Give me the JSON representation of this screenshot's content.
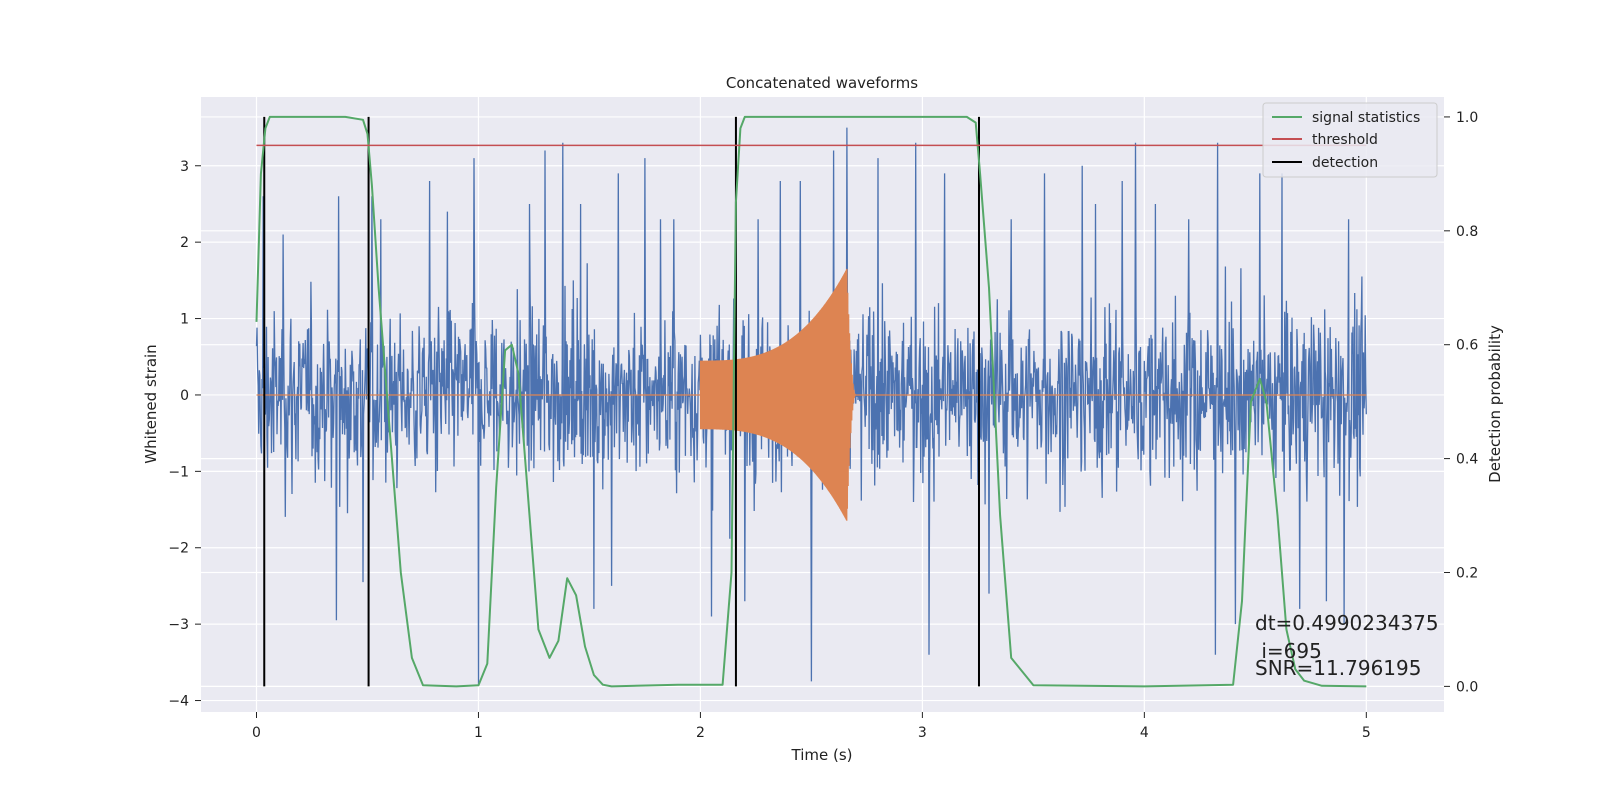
{
  "chart_data": {
    "type": "line",
    "title": "Concatenated waveforms",
    "xlabel": "Time (s)",
    "ylabel": "Whitened strain",
    "y2label": "Detection probability",
    "xlim": [
      -0.25,
      5.35
    ],
    "ylim": [
      -4.15,
      3.9
    ],
    "y2lim": [
      -0.045,
      1.035
    ],
    "x_ticks": [
      0,
      1,
      2,
      3,
      4,
      5
    ],
    "y_ticks": [
      -4,
      -3,
      -2,
      -1,
      0,
      1,
      2,
      3
    ],
    "y2_ticks": [
      0.0,
      0.2,
      0.4,
      0.6,
      0.8,
      1.0
    ],
    "grid": true,
    "legend_position": "top-right",
    "colors": {
      "strain": "#4c72b0",
      "injected_signal": "#dd8452",
      "signal_statistics": "#55a868",
      "threshold": "#c44e52",
      "detection": "#000000",
      "background": "#eaeaf2",
      "grid": "#ffffff"
    },
    "series": [
      {
        "name": "signal statistics",
        "axis": "right",
        "x": [
          0.0,
          0.02,
          0.04,
          0.06,
          0.1,
          0.2,
          0.4,
          0.48,
          0.5,
          0.52,
          0.55,
          0.6,
          0.65,
          0.7,
          0.75,
          0.9,
          1.0,
          1.04,
          1.08,
          1.12,
          1.15,
          1.18,
          1.22,
          1.27,
          1.32,
          1.36,
          1.4,
          1.44,
          1.48,
          1.52,
          1.56,
          1.6,
          1.9,
          2.0,
          2.1,
          2.14,
          2.16,
          2.18,
          2.2,
          2.25,
          3.2,
          3.24,
          3.26,
          3.3,
          3.35,
          3.4,
          3.5,
          4.0,
          4.4,
          4.44,
          4.48,
          4.52,
          4.55,
          4.6,
          4.64,
          4.68,
          4.72,
          4.8,
          5.0
        ],
        "values": [
          0.64,
          0.9,
          0.98,
          1.0,
          1.0,
          1.0,
          1.0,
          0.995,
          0.97,
          0.88,
          0.7,
          0.45,
          0.2,
          0.05,
          0.002,
          0.0,
          0.002,
          0.04,
          0.35,
          0.59,
          0.6,
          0.55,
          0.35,
          0.1,
          0.05,
          0.08,
          0.19,
          0.16,
          0.07,
          0.02,
          0.003,
          0.0,
          0.003,
          0.003,
          0.003,
          0.2,
          0.85,
          0.98,
          1.0,
          1.0,
          1.0,
          0.99,
          0.9,
          0.7,
          0.3,
          0.05,
          0.002,
          0.0,
          0.003,
          0.15,
          0.5,
          0.54,
          0.5,
          0.3,
          0.1,
          0.03,
          0.01,
          0.001,
          0.0
        ]
      },
      {
        "name": "threshold",
        "axis": "right",
        "x": [
          0.0,
          5.0
        ],
        "values": [
          0.95,
          0.95
        ]
      },
      {
        "name": "detection",
        "axis": "left",
        "x": [
          0.035,
          0.505,
          2.16,
          3.255
        ]
      }
    ],
    "legend": [
      "signal statistics",
      "threshold",
      "detection"
    ],
    "strain": {
      "x_start": 0.0,
      "x_end": 5.0,
      "amplitude_scale": 0.78,
      "spikes": [
        {
          "x": 0.03,
          "y": 2.6
        },
        {
          "x": 0.12,
          "y": 2.1
        },
        {
          "x": 0.37,
          "y": 2.6
        },
        {
          "x": 0.52,
          "y": 2.6
        },
        {
          "x": 0.36,
          "y": -2.95
        },
        {
          "x": 0.48,
          "y": -2.45
        },
        {
          "x": 0.78,
          "y": 2.8
        },
        {
          "x": 0.86,
          "y": 2.4
        },
        {
          "x": 0.98,
          "y": 3.1
        },
        {
          "x": 1.0,
          "y": -3.8
        },
        {
          "x": 1.23,
          "y": 2.5
        },
        {
          "x": 1.3,
          "y": 3.2
        },
        {
          "x": 1.38,
          "y": 3.3
        },
        {
          "x": 1.46,
          "y": 2.5
        },
        {
          "x": 1.52,
          "y": -2.8
        },
        {
          "x": 1.63,
          "y": 2.9
        },
        {
          "x": 1.75,
          "y": 3.1
        },
        {
          "x": 1.82,
          "y": 2.3
        },
        {
          "x": 1.88,
          "y": 2.3
        },
        {
          "x": 2.05,
          "y": -2.9
        },
        {
          "x": 2.26,
          "y": 2.3
        },
        {
          "x": 2.36,
          "y": 2.8
        },
        {
          "x": 2.45,
          "y": 2.8
        },
        {
          "x": 2.5,
          "y": -3.75
        },
        {
          "x": 2.6,
          "y": 3.2
        },
        {
          "x": 2.66,
          "y": 3.5
        },
        {
          "x": 2.8,
          "y": 3.1
        },
        {
          "x": 2.97,
          "y": 3.3
        },
        {
          "x": 3.03,
          "y": -3.4
        },
        {
          "x": 3.1,
          "y": 2.9
        },
        {
          "x": 3.4,
          "y": 2.3
        },
        {
          "x": 3.55,
          "y": 2.9
        },
        {
          "x": 3.72,
          "y": 3.0
        },
        {
          "x": 3.78,
          "y": 2.5
        },
        {
          "x": 3.9,
          "y": 2.8
        },
        {
          "x": 3.96,
          "y": 3.3
        },
        {
          "x": 4.05,
          "y": 2.5
        },
        {
          "x": 4.2,
          "y": 2.3
        },
        {
          "x": 4.33,
          "y": 3.3
        },
        {
          "x": 4.32,
          "y": -3.4
        },
        {
          "x": 4.41,
          "y": -3.0
        },
        {
          "x": 4.52,
          "y": 2.9
        },
        {
          "x": 4.62,
          "y": 2.9
        },
        {
          "x": 4.7,
          "y": -2.8
        },
        {
          "x": 4.82,
          "y": -2.7
        },
        {
          "x": 4.92,
          "y": 2.3
        },
        {
          "x": 0.56,
          "y": 2.3
        },
        {
          "x": 1.6,
          "y": -2.5
        },
        {
          "x": 2.2,
          "y": -2.7
        },
        {
          "x": 3.3,
          "y": -2.6
        },
        {
          "x": 4.9,
          "y": -3.0
        }
      ]
    },
    "injected_signal": {
      "x_start": 2.0,
      "x_end": 2.66,
      "amplitude_start": 0.45,
      "amplitude_end": 1.65,
      "tail_end": 2.7
    },
    "annotations": [
      "dt=0.4990234375",
      " i=695",
      "SNR=11.796195"
    ]
  }
}
